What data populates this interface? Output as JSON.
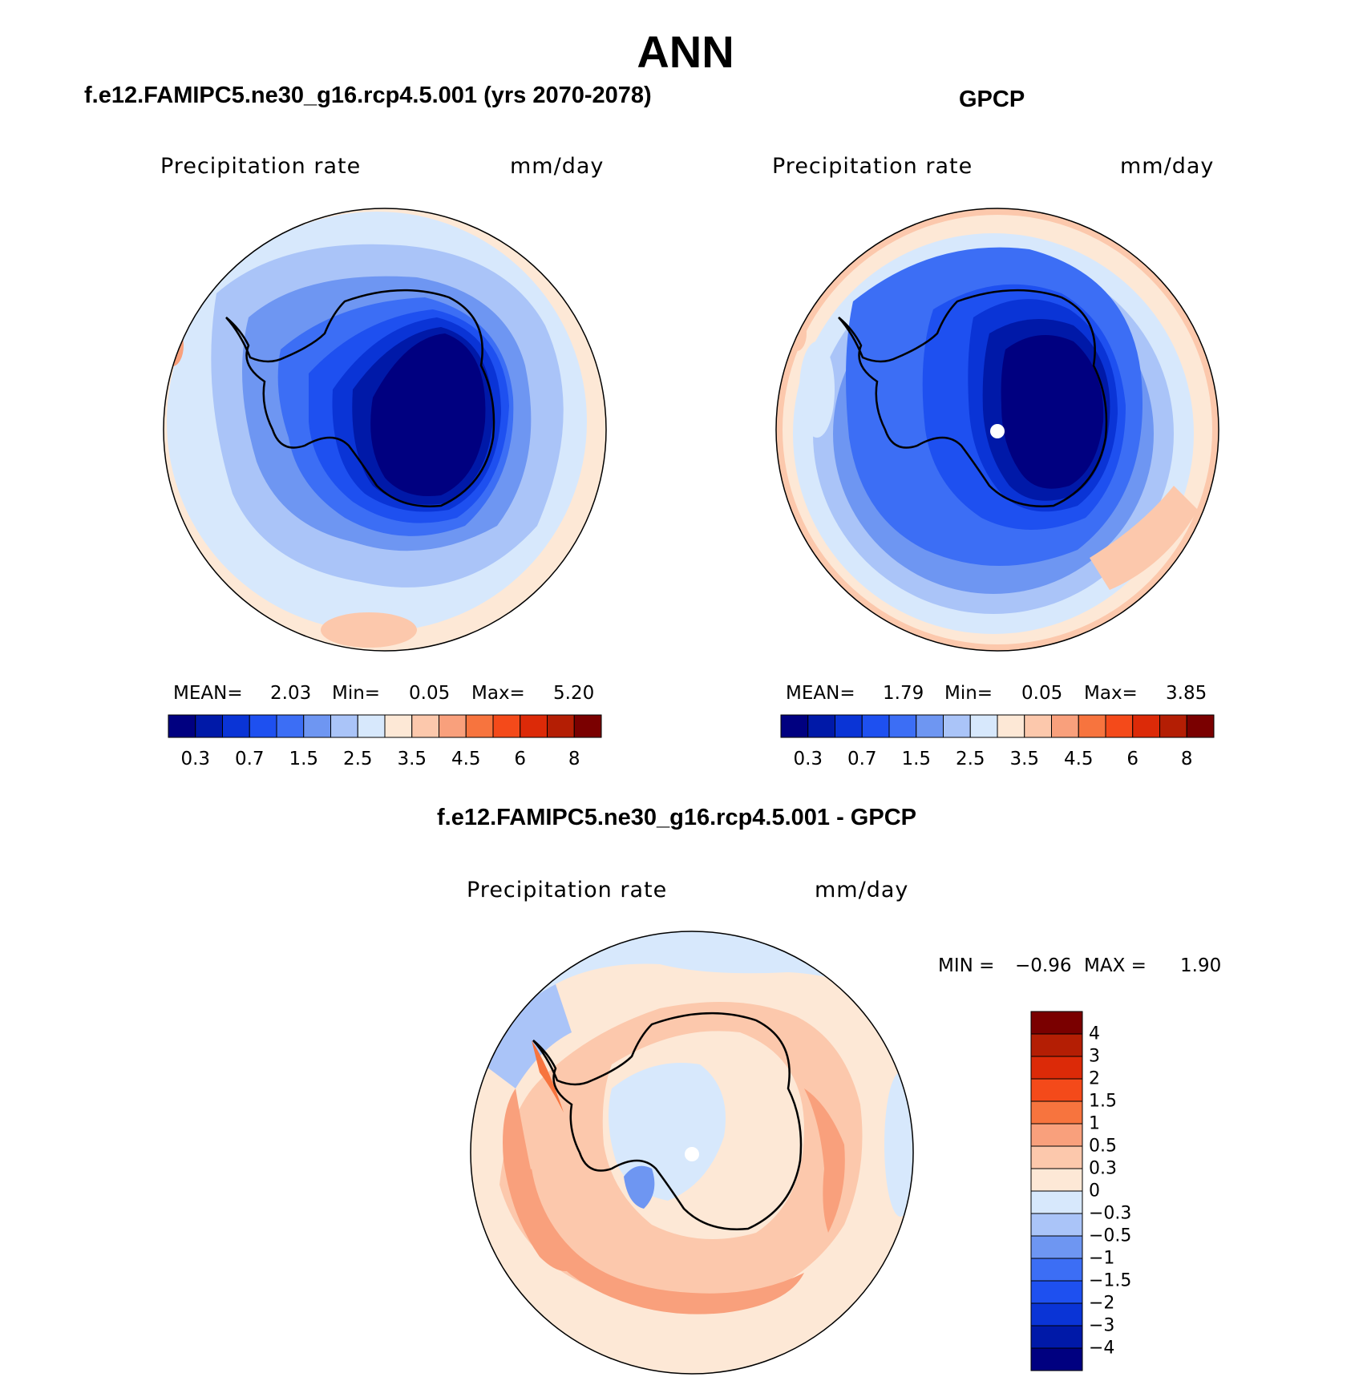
{
  "title": "ANN",
  "colors": {
    "scale": [
      "#000080",
      "#0019a8",
      "#0a34d6",
      "#1e50f0",
      "#3c6ef5",
      "#6e96f2",
      "#aac4f8",
      "#d7e8fc",
      "#fde8d6",
      "#fcc8ac",
      "#f9a07c",
      "#f7743e",
      "#f44a1a",
      "#dc2a08",
      "#b41e04",
      "#7a0000"
    ],
    "diff": [
      "#000080",
      "#0019a8",
      "#0a34d6",
      "#1e50f0",
      "#3c6ef5",
      "#6e96f2",
      "#aac4f8",
      "#d7e8fc",
      "#fde8d6",
      "#fcc8ac",
      "#f9a07c",
      "#f7743e",
      "#f44a1a",
      "#dc2a08",
      "#b41e04",
      "#7a0000"
    ]
  },
  "panels": {
    "model": {
      "title": "f.e12.FAMIPC5.ne30_g16.rcp4.5.001 (yrs 2070-2078)",
      "variable": "Precipitation rate",
      "units": "mm/day",
      "mean_label": "MEAN=",
      "mean": "2.03",
      "min_label": "Min=",
      "min": "0.05",
      "max_label": "Max=",
      "max": "5.20"
    },
    "obs": {
      "title": "GPCP",
      "variable": "Precipitation rate",
      "units": "mm/day",
      "mean_label": "MEAN=",
      "mean": "1.79",
      "min_label": "Min=",
      "min": "0.05",
      "max_label": "Max=",
      "max": "3.85"
    },
    "diff": {
      "title": "f.e12.FAMIPC5.ne30_g16.rcp4.5.001 - GPCP",
      "variable": "Precipitation rate",
      "units": "mm/day",
      "min_label": "MIN =",
      "min": "−0.96",
      "max_label": "MAX =",
      "max": "1.90"
    }
  },
  "colorbar": {
    "ticks": [
      "0.3",
      "0.7",
      "1.5",
      "2.5",
      "3.5",
      "4.5",
      "6",
      "8"
    ]
  },
  "diff_colorbar": {
    "ticks": [
      "4",
      "3",
      "2",
      "1.5",
      "1",
      "0.5",
      "0.3",
      "0",
      "−0.3",
      "−0.5",
      "−1",
      "−1.5",
      "−2",
      "−3",
      "−4"
    ]
  }
}
